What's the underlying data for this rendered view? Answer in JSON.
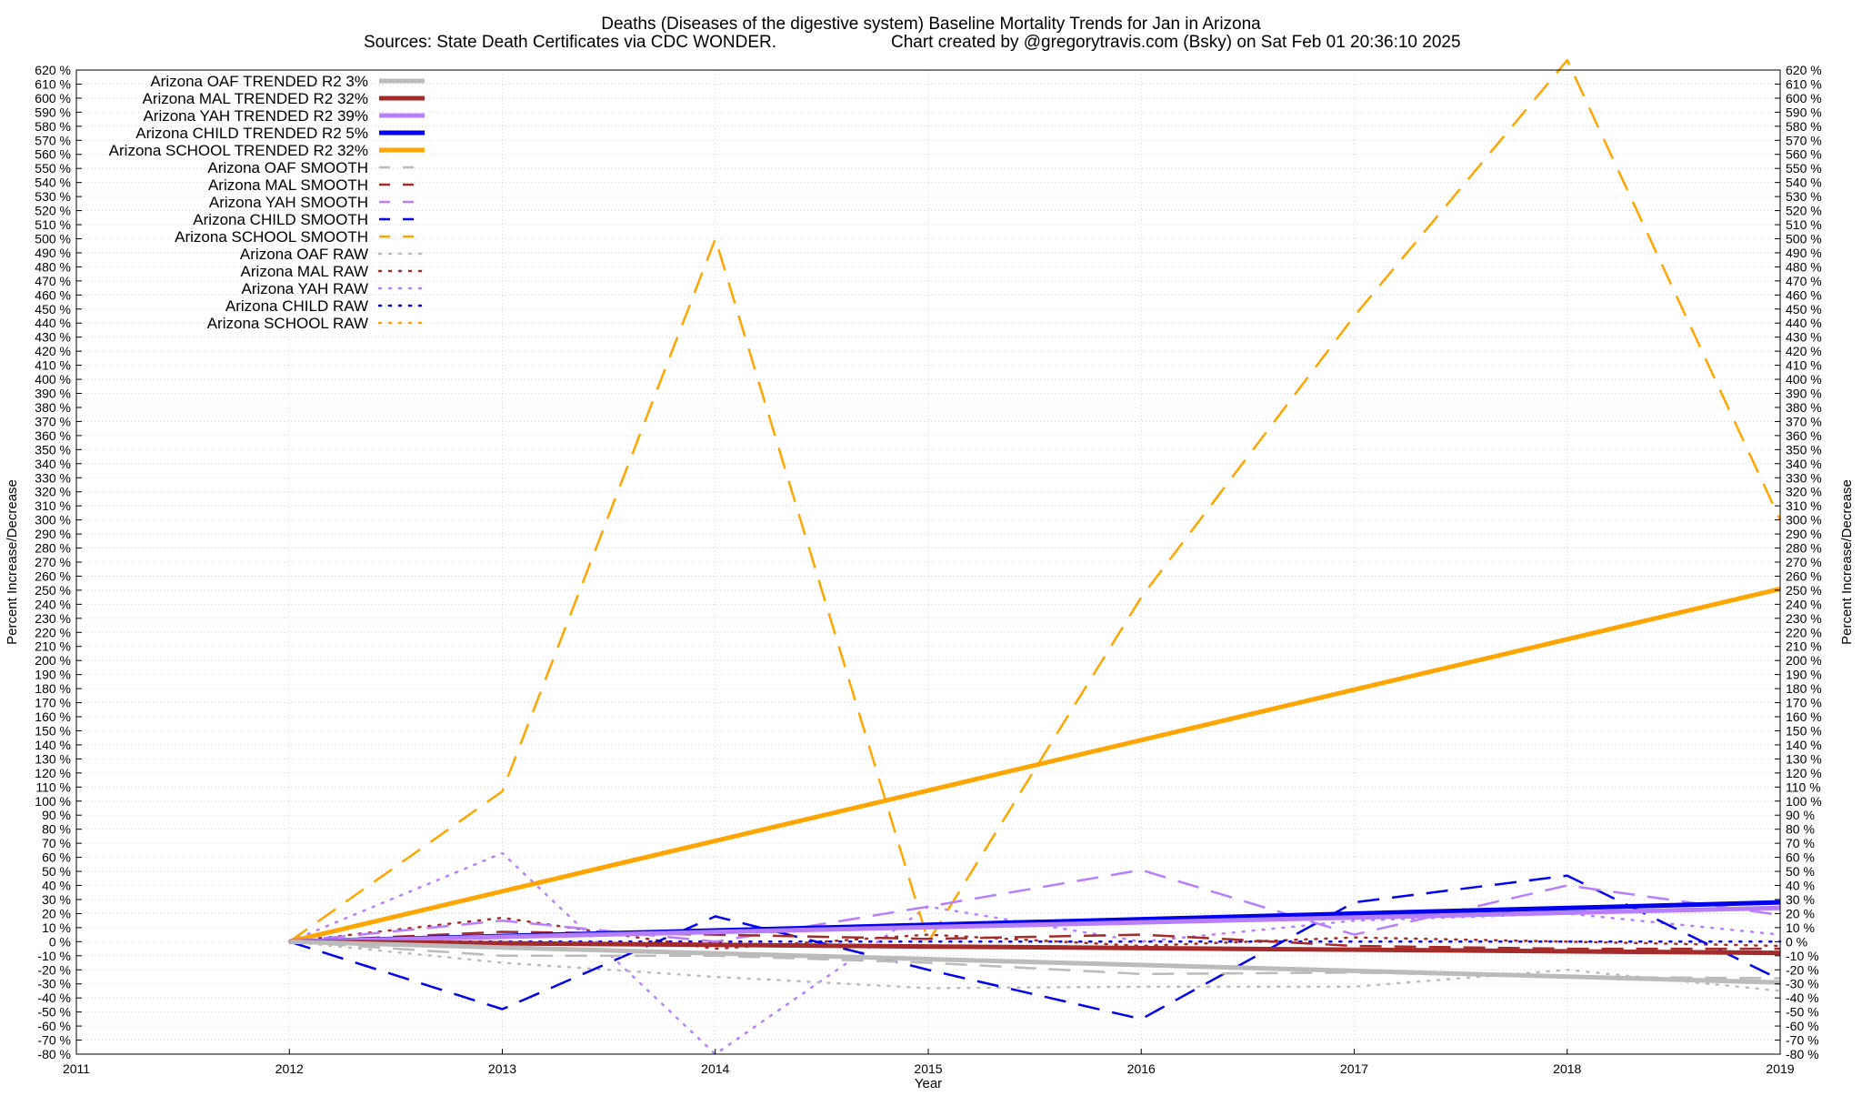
{
  "chart_data": {
    "type": "line",
    "title": "Deaths (Diseases of the digestive system)  Baseline Mortality Trends for Jan in Arizona",
    "subtitle_left": "Sources: State Death Certificates via CDC WONDER.",
    "subtitle_right": "Chart created by @gregorytravis.com (Bsky) on Sat Feb 01 20:36:10 2025",
    "xlabel": "Year",
    "ylabel_left": "Percent Increase/Decrease",
    "ylabel_right": "Percent Increase/Decrease",
    "xlim": [
      2011,
      2019
    ],
    "ylim": [
      -80,
      620
    ],
    "x_ticks": [
      "2011",
      "2012",
      "2013",
      "2014",
      "2015",
      "2016",
      "2017",
      "2018",
      "2019"
    ],
    "y_tick_labels": [
      "620 %",
      "610 %",
      "600 %",
      "590 %",
      "580 %",
      "570 %",
      "560 %",
      "550 %",
      "540 %",
      "530 %",
      "520 %",
      "510 %",
      "500 %",
      "490 %",
      "480 %",
      "470 %",
      "460 %",
      "450 %",
      "440 %",
      "430 %",
      "420 %",
      "410 %",
      "400 %",
      "390 %",
      "380 %",
      "370 %",
      "360 %",
      "350 %",
      "340 %",
      "330 %",
      "320 %",
      "310 %",
      "300 %",
      "290 %",
      "280 %",
      "270 %",
      "260 %",
      "250 %",
      "240 %",
      "230 %",
      "220 %",
      "210 %",
      "200 %",
      "190 %",
      "180 %",
      "170 %",
      "160 %",
      "150 %",
      "140 %",
      "130 %",
      "120 %",
      "110 %",
      "100 %",
      "90 %",
      "80 %",
      "70 %",
      "60 %",
      "50 %",
      "40 %",
      "30 %",
      "20 %",
      "10 %",
      "0 %",
      "-10 %",
      "-20 %",
      "-30 %",
      "-40 %",
      "-50 %",
      "-60 %",
      "-70 %",
      "-80 %"
    ],
    "grid": true,
    "legend_position": "top-left",
    "series": [
      {
        "name": "Arizona OAF TRENDED R2  3%",
        "style": "solid",
        "width": 5,
        "color": "#bbbbbb",
        "x": [
          2012,
          2019
        ],
        "y": [
          0,
          -29
        ]
      },
      {
        "name": "Arizona MAL TRENDED R2  32%",
        "style": "solid",
        "width": 5,
        "color": "#a52a2a",
        "x": [
          2012,
          2019
        ],
        "y": [
          0,
          -8
        ]
      },
      {
        "name": "Arizona YAH TRENDED R2  39%",
        "style": "solid",
        "width": 5,
        "color": "#b77eff",
        "x": [
          2012,
          2019
        ],
        "y": [
          0,
          24
        ]
      },
      {
        "name": "Arizona CHILD TRENDED R2  5%",
        "style": "solid",
        "width": 5,
        "color": "#0000ee",
        "x": [
          2012,
          2019
        ],
        "y": [
          0,
          28
        ]
      },
      {
        "name": "Arizona SCHOOL TRENDED R2  32%",
        "style": "solid",
        "width": 5,
        "color": "#ffa500",
        "x": [
          2012,
          2019
        ],
        "y": [
          0,
          251
        ]
      },
      {
        "name": "Arizona OAF SMOOTH",
        "style": "dashed",
        "width": 2.5,
        "color": "#bbbbbb",
        "x": [
          2012,
          2013,
          2014,
          2015,
          2016,
          2017,
          2018,
          2019
        ],
        "y": [
          0,
          -10,
          -10,
          -15,
          -23,
          -22,
          -25,
          -26
        ]
      },
      {
        "name": "Arizona MAL SMOOTH",
        "style": "dashed",
        "width": 2.5,
        "color": "#a52a2a",
        "x": [
          2012,
          2013,
          2014,
          2015,
          2016,
          2017,
          2018,
          2019
        ],
        "y": [
          0,
          7,
          5,
          2,
          5,
          -3,
          -5,
          -5
        ]
      },
      {
        "name": "Arizona YAH SMOOTH",
        "style": "dashed",
        "width": 2.5,
        "color": "#b77eff",
        "x": [
          2012,
          2013,
          2014,
          2015,
          2016,
          2017,
          2018,
          2019
        ],
        "y": [
          0,
          15,
          0,
          25,
          51,
          5,
          40,
          19
        ]
      },
      {
        "name": "Arizona CHILD SMOOTH",
        "style": "dashed",
        "width": 2.5,
        "color": "#0000ee",
        "x": [
          2012,
          2013,
          2014,
          2015,
          2016,
          2017,
          2018,
          2019
        ],
        "y": [
          0,
          -48,
          18,
          -20,
          -55,
          28,
          47,
          -27
        ]
      },
      {
        "name": "Arizona SCHOOL SMOOTH",
        "style": "dashed",
        "width": 2.5,
        "color": "#ffa500",
        "x": [
          2012,
          2013,
          2014,
          2015,
          2016,
          2017,
          2018,
          2019
        ],
        "y": [
          0,
          107,
          500,
          0,
          245,
          445,
          627,
          300
        ]
      },
      {
        "name": "Arizona OAF RAW",
        "style": "dotted",
        "width": 2.5,
        "color": "#bbbbbb",
        "x": [
          2012,
          2013,
          2014,
          2015,
          2016,
          2017,
          2018,
          2019
        ],
        "y": [
          0,
          -15,
          -25,
          -33,
          -32,
          -32,
          -20,
          -35
        ]
      },
      {
        "name": "Arizona MAL RAW",
        "style": "dotted",
        "width": 2.5,
        "color": "#a52a2a",
        "x": [
          2012,
          2013,
          2014,
          2015,
          2016,
          2017,
          2018,
          2019
        ],
        "y": [
          0,
          17,
          -5,
          5,
          -3,
          3,
          0,
          -3
        ]
      },
      {
        "name": "Arizona YAH RAW",
        "style": "dotted",
        "width": 2.5,
        "color": "#b77eff",
        "x": [
          2012,
          2013,
          2014,
          2015,
          2016,
          2017,
          2018,
          2019
        ],
        "y": [
          0,
          63,
          -80,
          25,
          0,
          15,
          20,
          5
        ]
      },
      {
        "name": "Arizona CHILD RAW",
        "style": "dotted",
        "width": 2.5,
        "color": "#0000ee",
        "x": [
          2012,
          2013,
          2014,
          2015,
          2016,
          2017,
          2018,
          2019
        ],
        "y": [
          0,
          0,
          0,
          0,
          0,
          0,
          0,
          0
        ]
      },
      {
        "name": "Arizona SCHOOL RAW",
        "style": "dotted",
        "width": 2.5,
        "color": "#ffa500",
        "x": [
          2012,
          2013,
          2014,
          2015,
          2016,
          2017,
          2018,
          2019
        ],
        "y": [
          0,
          0,
          0,
          0,
          0,
          0,
          0,
          0
        ]
      }
    ]
  }
}
